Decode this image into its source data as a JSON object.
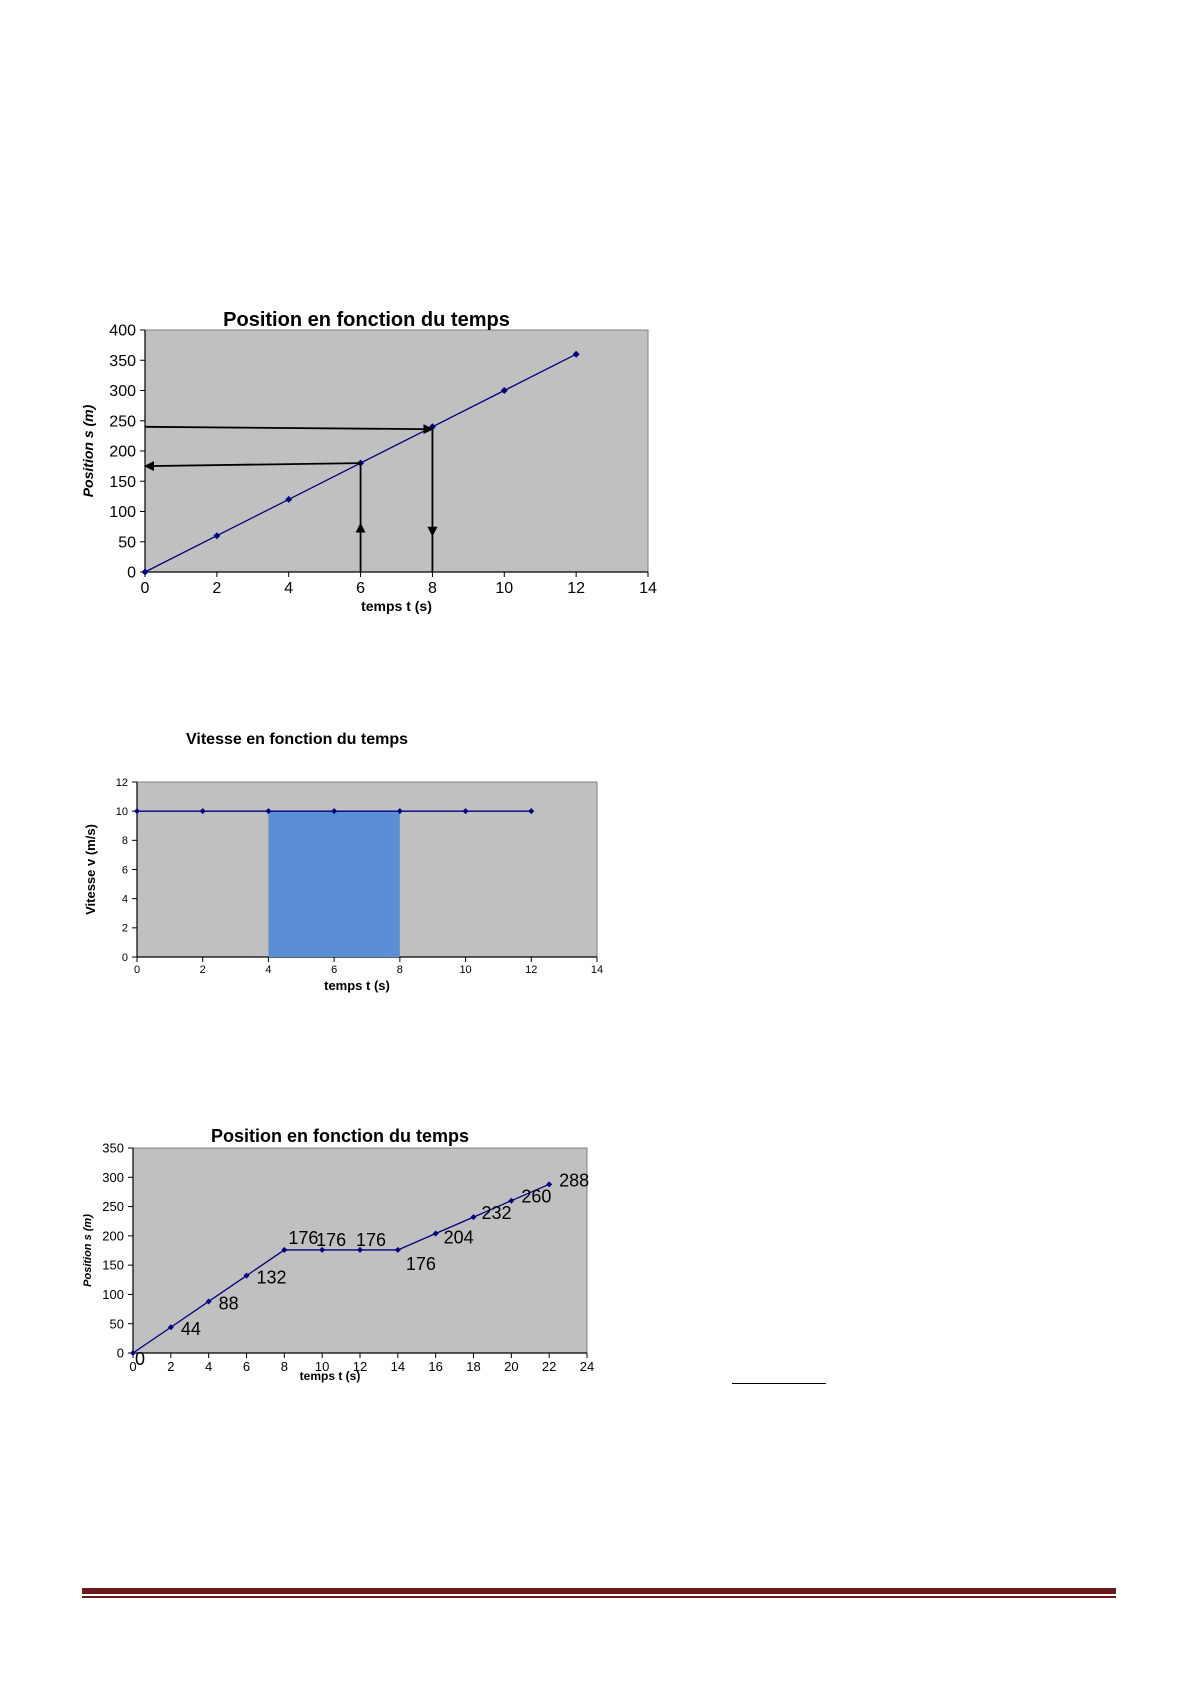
{
  "colors": {
    "plot_bg": "#c0c0c0",
    "series": "#00007f",
    "highlight": "#5a8fd6",
    "footer": "#6b1a1a"
  },
  "chart_data": [
    {
      "type": "line",
      "title": "Position en fonction du temps",
      "xlabel": "temps t (s)",
      "ylabel": "Position s (m)",
      "xlim": [
        0,
        14
      ],
      "ylim": [
        0,
        400
      ],
      "xticks": [
        0,
        2,
        4,
        6,
        8,
        10,
        12,
        14
      ],
      "yticks": [
        0,
        50,
        100,
        150,
        200,
        250,
        300,
        350,
        400
      ],
      "grid": false,
      "series": [
        {
          "x": [
            0,
            2,
            4,
            6,
            8,
            10,
            12
          ],
          "y": [
            0,
            60,
            120,
            180,
            240,
            300,
            360
          ]
        }
      ],
      "annotations": [
        {
          "type": "arrow",
          "from": [
            6,
            0
          ],
          "to": [
            6,
            80
          ]
        },
        {
          "type": "line",
          "from": [
            6,
            80
          ],
          "to": [
            6,
            180
          ]
        },
        {
          "type": "arrow",
          "from": [
            6,
            180
          ],
          "to": [
            0,
            175
          ]
        },
        {
          "type": "line",
          "from": [
            8,
            0
          ],
          "to": [
            8,
            60
          ]
        },
        {
          "type": "arrow",
          "from": [
            8,
            240
          ],
          "to": [
            8,
            60
          ]
        },
        {
          "type": "arrow",
          "from": [
            0,
            240
          ],
          "to": [
            8,
            236
          ]
        }
      ]
    },
    {
      "type": "line",
      "title": "Vitesse en fonction du temps",
      "xlabel": "temps t (s)",
      "ylabel": "Vitesse v (m/s)",
      "xlim": [
        0,
        14
      ],
      "ylim": [
        0,
        12
      ],
      "xticks": [
        0,
        2,
        4,
        6,
        8,
        10,
        12,
        14
      ],
      "yticks": [
        0,
        2,
        4,
        6,
        8,
        10,
        12
      ],
      "grid": false,
      "series": [
        {
          "x": [
            0,
            2,
            4,
            6,
            8,
            10,
            12
          ],
          "y": [
            10,
            10,
            10,
            10,
            10,
            10,
            10
          ]
        }
      ],
      "shaded_region": {
        "x": [
          4,
          8
        ],
        "y": [
          0,
          10
        ]
      }
    },
    {
      "type": "line",
      "title": "Position en fonction du temps",
      "xlabel": "temps t (s)",
      "ylabel": "Position s (m)",
      "xlim": [
        0,
        24
      ],
      "ylim": [
        0,
        350
      ],
      "xticks": [
        0,
        2,
        4,
        6,
        8,
        10,
        12,
        14,
        16,
        18,
        20,
        22,
        24
      ],
      "yticks": [
        0,
        50,
        100,
        150,
        200,
        250,
        300,
        350
      ],
      "grid": false,
      "series": [
        {
          "x": [
            0,
            2,
            4,
            6,
            8,
            10,
            12,
            14,
            16,
            18,
            20,
            22
          ],
          "y": [
            0,
            44,
            88,
            132,
            176,
            176,
            176,
            176,
            204,
            232,
            260,
            288
          ]
        }
      ],
      "data_labels": [
        "0",
        "44",
        "88",
        "132",
        "176",
        "176",
        "176",
        "176",
        "204",
        "232",
        "260",
        "288"
      ]
    }
  ]
}
